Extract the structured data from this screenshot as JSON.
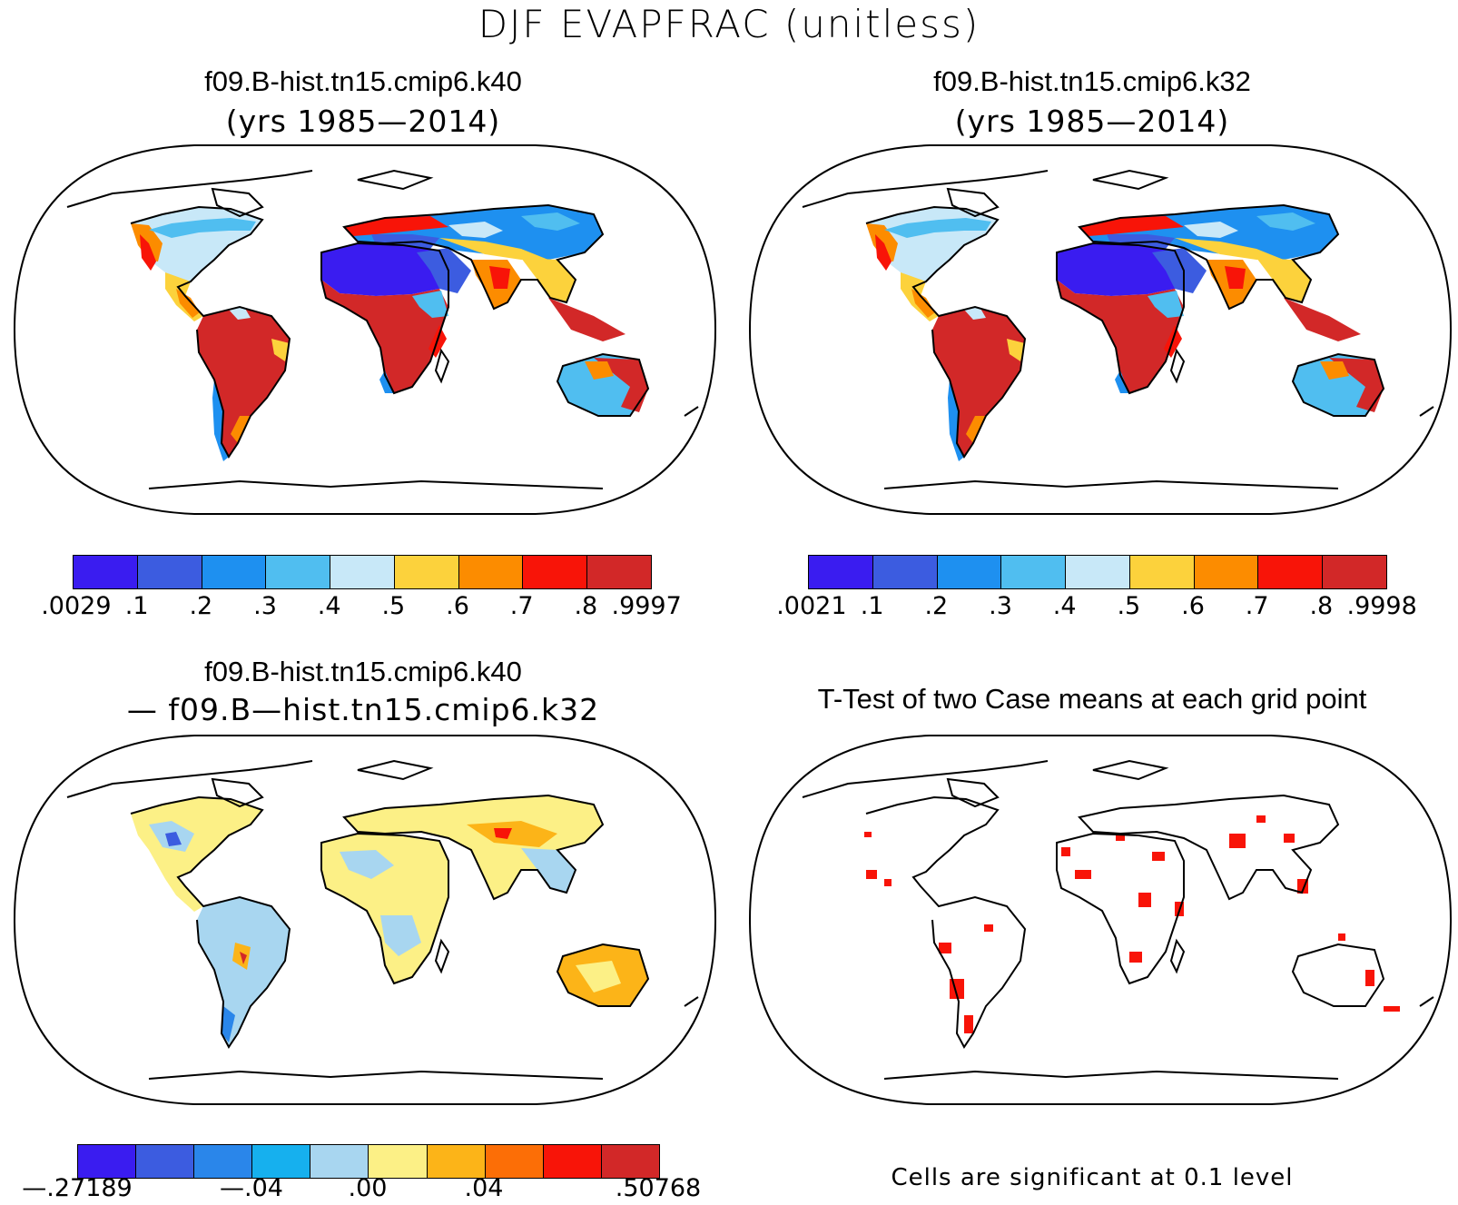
{
  "title": "DJF EVAPFRAC (unitless)",
  "panels": {
    "top_left": {
      "case": "f09.B-hist.tn15.cmip6.k40",
      "years": "(yrs 1985—2014)",
      "colorbar": {
        "colors": [
          "#3a1cf0",
          "#3c5ce0",
          "#1e90f0",
          "#50bef0",
          "#c8e8f8",
          "#fcd23c",
          "#fc8c00",
          "#f81408",
          "#d22828"
        ],
        "tick_labels": [
          ".0029",
          ".1",
          ".2",
          ".3",
          ".4",
          ".5",
          ".6",
          ".7",
          ".8",
          ".9997"
        ]
      }
    },
    "top_right": {
      "case": "f09.B-hist.tn15.cmip6.k32",
      "years": "(yrs 1985—2014)",
      "colorbar": {
        "colors": [
          "#3a1cf0",
          "#3c5ce0",
          "#1e90f0",
          "#50bef0",
          "#c8e8f8",
          "#fcd23c",
          "#fc8c00",
          "#f81408",
          "#d22828"
        ],
        "tick_labels": [
          ".0021",
          ".1",
          ".2",
          ".3",
          ".4",
          ".5",
          ".6",
          ".7",
          ".8",
          ".9998"
        ]
      }
    },
    "bottom_left": {
      "case": "f09.B-hist.tn15.cmip6.k40",
      "minus_case": "— f09.B—hist.tn15.cmip6.k32",
      "colorbar": {
        "colors": [
          "#3a1cf0",
          "#3c5ce0",
          "#2a86ea",
          "#16b0ee",
          "#a8d6f0",
          "#fcf086",
          "#fcb418",
          "#fc6e06",
          "#f81408",
          "#d22828"
        ],
        "tick_labels": [
          "—.27189",
          "—.04",
          ".00",
          ".04",
          ".50768"
        ]
      }
    },
    "bottom_right": {
      "title": "T-Test of two Case means at each grid point",
      "note": "Cells are significant at 0.1 level"
    }
  }
}
